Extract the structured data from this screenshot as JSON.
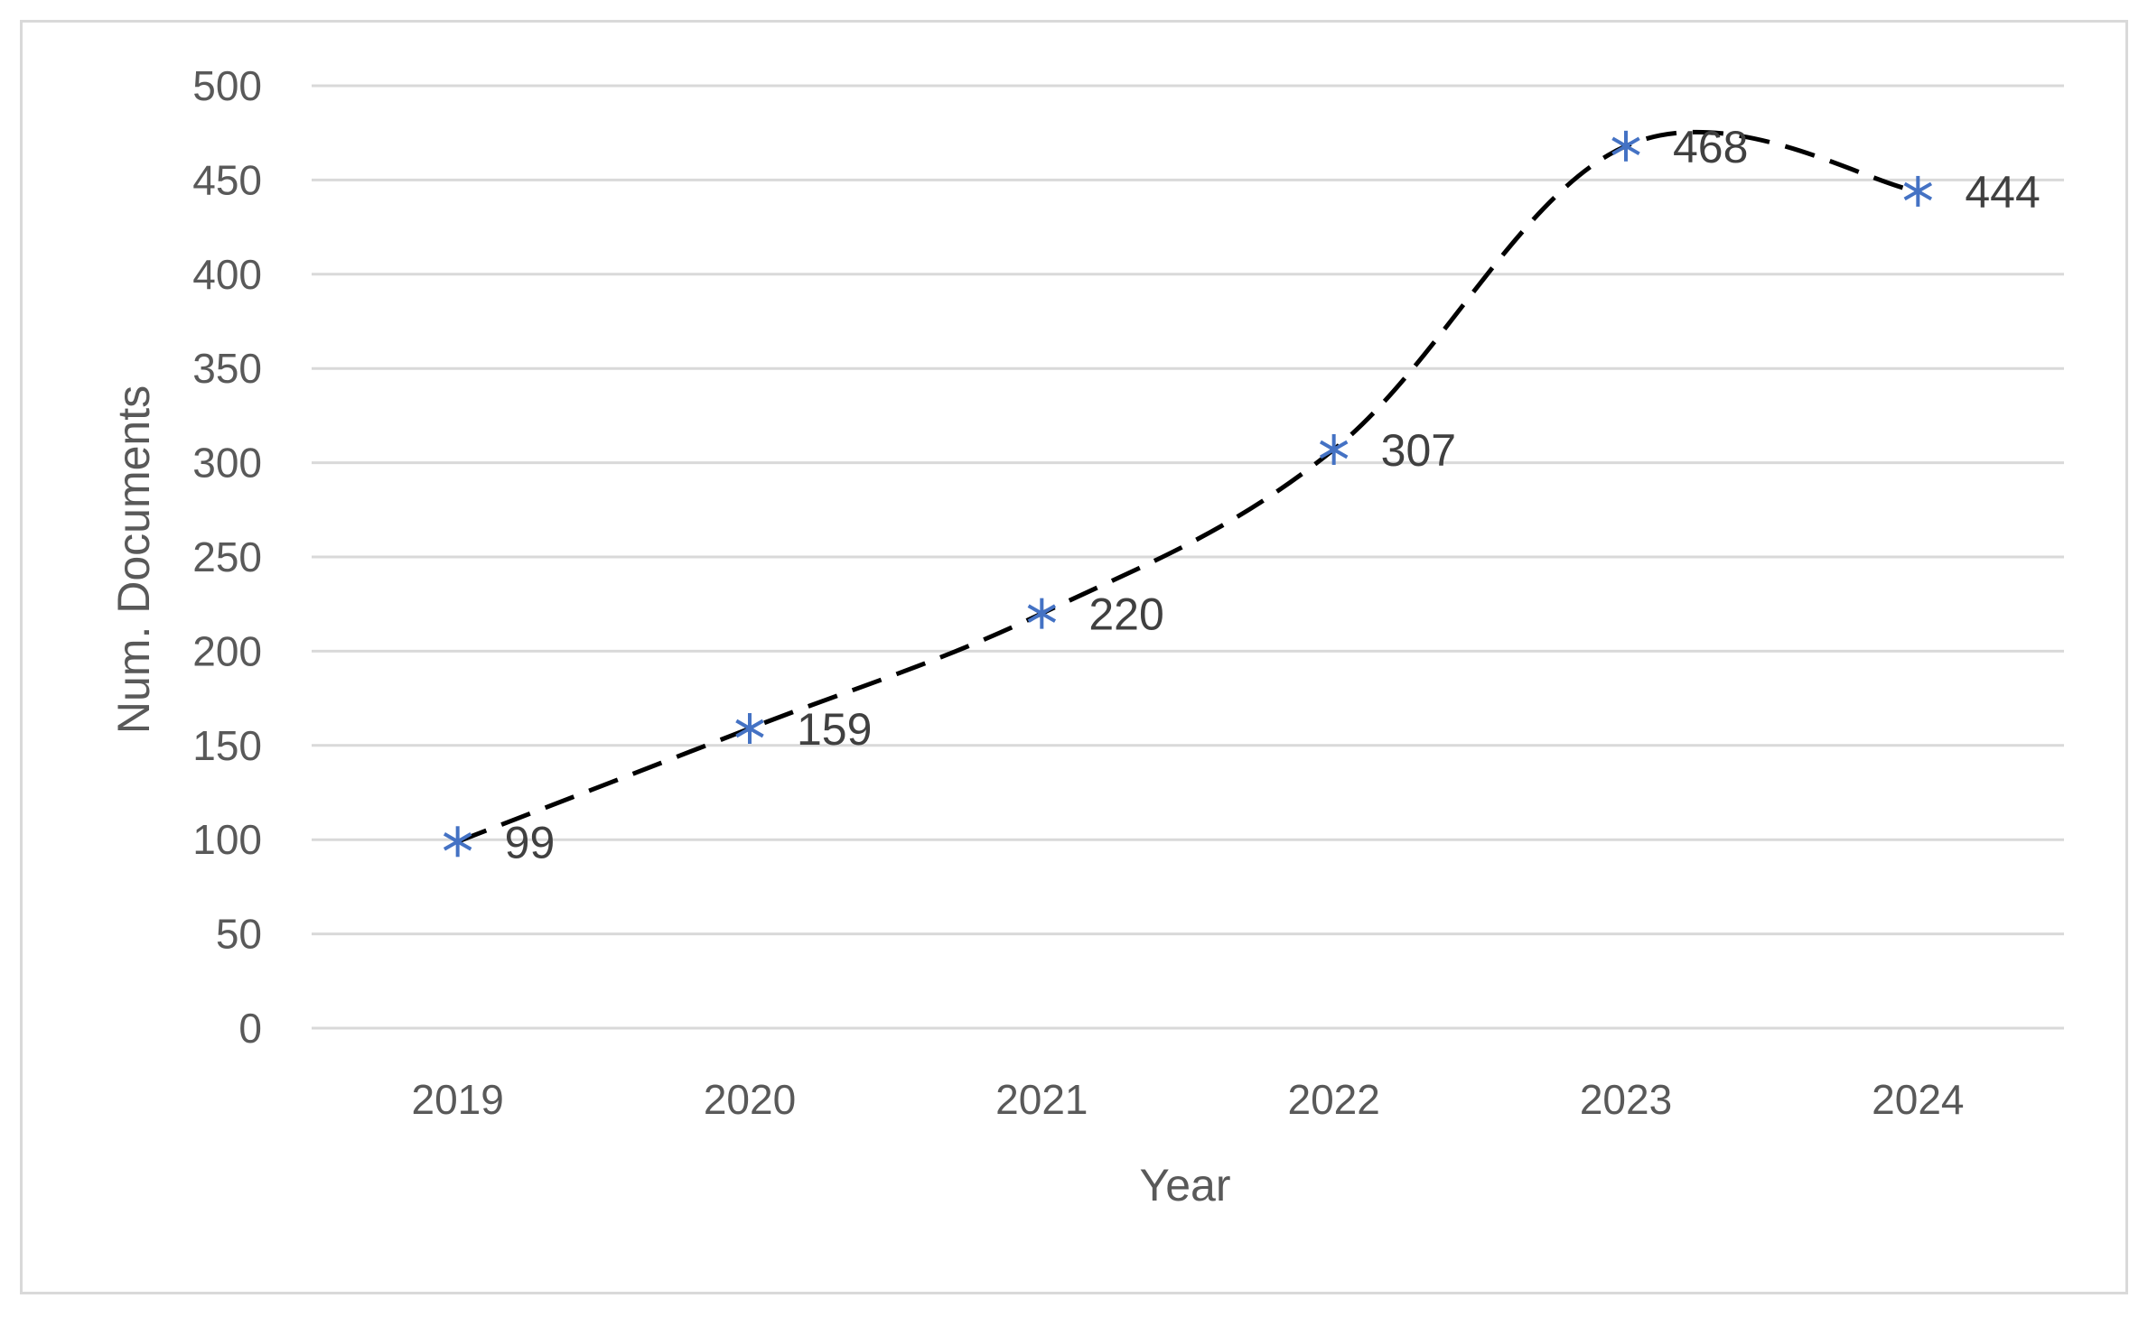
{
  "chart_data": {
    "type": "line",
    "x": [
      "2019",
      "2020",
      "2021",
      "2022",
      "2023",
      "2024"
    ],
    "series": [
      {
        "values": [
          99,
          159,
          220,
          307,
          468,
          444
        ]
      }
    ],
    "data_labels": [
      "99",
      "159",
      "220",
      "307",
      "468",
      "444"
    ],
    "xlabel": "Year",
    "ylabel": "Num. Documents",
    "ylim": [
      0,
      500
    ],
    "yticks": [
      "0",
      "50",
      "100",
      "150",
      "200",
      "250",
      "300",
      "350",
      "400",
      "450",
      "500"
    ],
    "grid": "horizontal",
    "legend": "none",
    "line_color": "#000000",
    "line_style": "dashed",
    "marker": "asterisk",
    "marker_color": "#4472C4",
    "gridline_color": "#d9d9d9",
    "text_color": "#595959"
  }
}
